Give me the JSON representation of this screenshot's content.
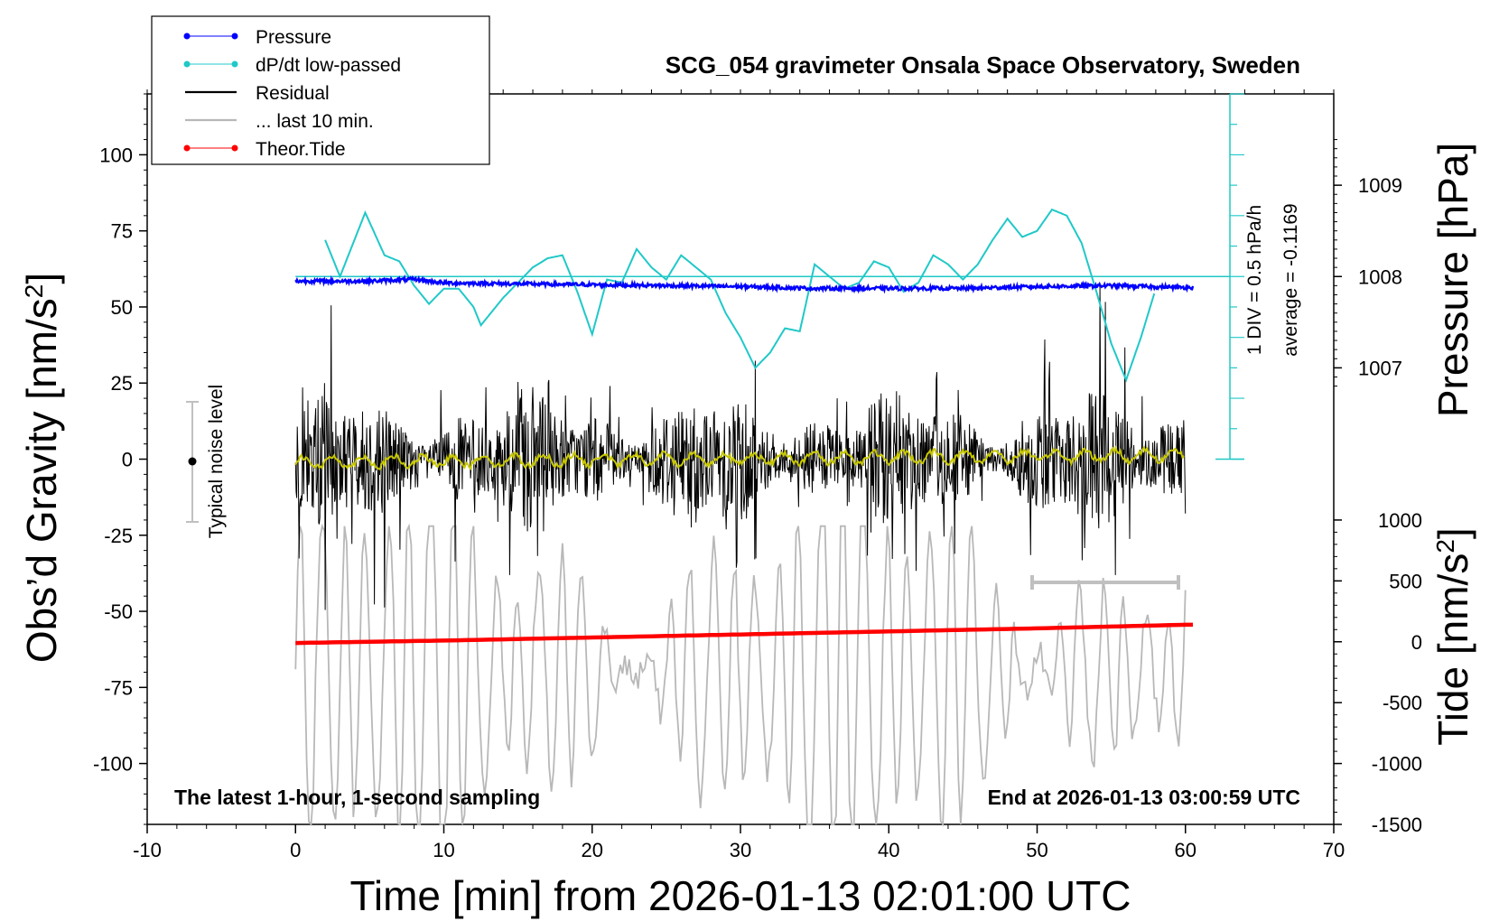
{
  "chart_data": {
    "type": "line",
    "title": "SCG_054 gravimeter Onsala Space Observatory, Sweden",
    "xlabel": "Time [min] from 2026-01-13 02:01:00 UTC",
    "ylabel_main": "Obs’d Gravity [nm/s",
    "ylabel_sup": "2",
    "ylabel_close": "]",
    "ylabel_pressure": "Pressure [hPa]",
    "ylabel_tide": "Tide [nm/s",
    "ylabel_tide_sup": "2",
    "ylabel_tide_close": "]",
    "xlim": [
      -10,
      70
    ],
    "ylim": [
      -120,
      120
    ],
    "x_ticks": [
      -10,
      0,
      10,
      20,
      30,
      40,
      50,
      60,
      70
    ],
    "y_ticks": [
      100,
      75,
      50,
      25,
      0,
      -25,
      -50,
      -75,
      -100
    ],
    "pressure_ticks": [
      1009,
      1008,
      1007
    ],
    "tide_ticks": [
      1000,
      500,
      0,
      -500,
      -1000,
      -1500
    ],
    "legend": {
      "position": "top-left",
      "entries": [
        {
          "label": "Pressure",
          "color": "#0000ff"
        },
        {
          "label": "dP/dt low-passed",
          "color": "#20c8c8"
        },
        {
          "label": "Residual",
          "color": "#000000"
        },
        {
          "label": "... last 10 min.",
          "color": "#b8b8b8"
        },
        {
          "label": "Theor.Tide",
          "color": "#ff0000"
        }
      ]
    },
    "annotations": {
      "noise_label": "Typical noise level",
      "div_label": "1 DIV = 0.5 hPa/h",
      "average_label": "average = -0.1169",
      "bottom_left": "The latest 1-hour, 1-second sampling",
      "bottom_right": "End at 2026-01-13 03:00:59 UTC"
    },
    "series": [
      {
        "name": "Pressure",
        "unit": "hPa",
        "x": [
          0,
          5,
          8,
          10,
          15,
          20,
          25,
          30,
          35,
          40,
          45,
          50,
          55,
          60
        ],
        "values": [
          1007.95,
          1007.95,
          1007.97,
          1007.93,
          1007.92,
          1007.91,
          1007.9,
          1007.89,
          1007.87,
          1007.87,
          1007.87,
          1007.89,
          1007.9,
          1007.88
        ]
      },
      {
        "name": "dP/dt low-passed",
        "x": [
          2,
          3,
          4.7,
          6,
          7,
          8,
          9,
          10,
          11,
          12,
          12.5,
          14,
          15,
          16,
          17,
          18,
          19,
          20,
          21,
          22,
          23,
          24,
          25,
          26,
          27,
          28,
          29,
          30,
          31,
          32,
          33,
          34,
          35,
          36,
          37,
          38,
          39,
          40,
          41,
          42,
          43,
          44,
          45,
          46,
          47,
          48,
          49,
          50,
          51,
          52,
          53,
          54,
          55,
          56,
          57,
          58
        ],
        "values": [
          72,
          60,
          81,
          67,
          65,
          57,
          51,
          56,
          56,
          50,
          44,
          53,
          58,
          63,
          66,
          67,
          55,
          41,
          59,
          58,
          69,
          63,
          59,
          67,
          63,
          59,
          48,
          40,
          30,
          35,
          43,
          42,
          64,
          60,
          56,
          58,
          65,
          63,
          55,
          58,
          67,
          64,
          59,
          64,
          72,
          79,
          73,
          75,
          82,
          80,
          71,
          55,
          38,
          26,
          40,
          56
        ]
      },
      {
        "name": "Residual",
        "unit": "nm/s2",
        "x": [
          0,
          10,
          20,
          30,
          40,
          50,
          60
        ],
        "values": [
          0,
          0,
          0,
          0,
          0,
          0,
          0
        ]
      },
      {
        "name": "... last 10 min.",
        "x": [
          50,
          60
        ],
        "values": [
          -40,
          -40
        ]
      },
      {
        "name": "Theor.Tide",
        "unit": "nm/s2",
        "x": [
          0,
          10,
          20,
          30,
          40,
          50,
          60
        ],
        "values": [
          -10,
          10,
          35,
          60,
          85,
          110,
          140
        ]
      }
    ]
  }
}
